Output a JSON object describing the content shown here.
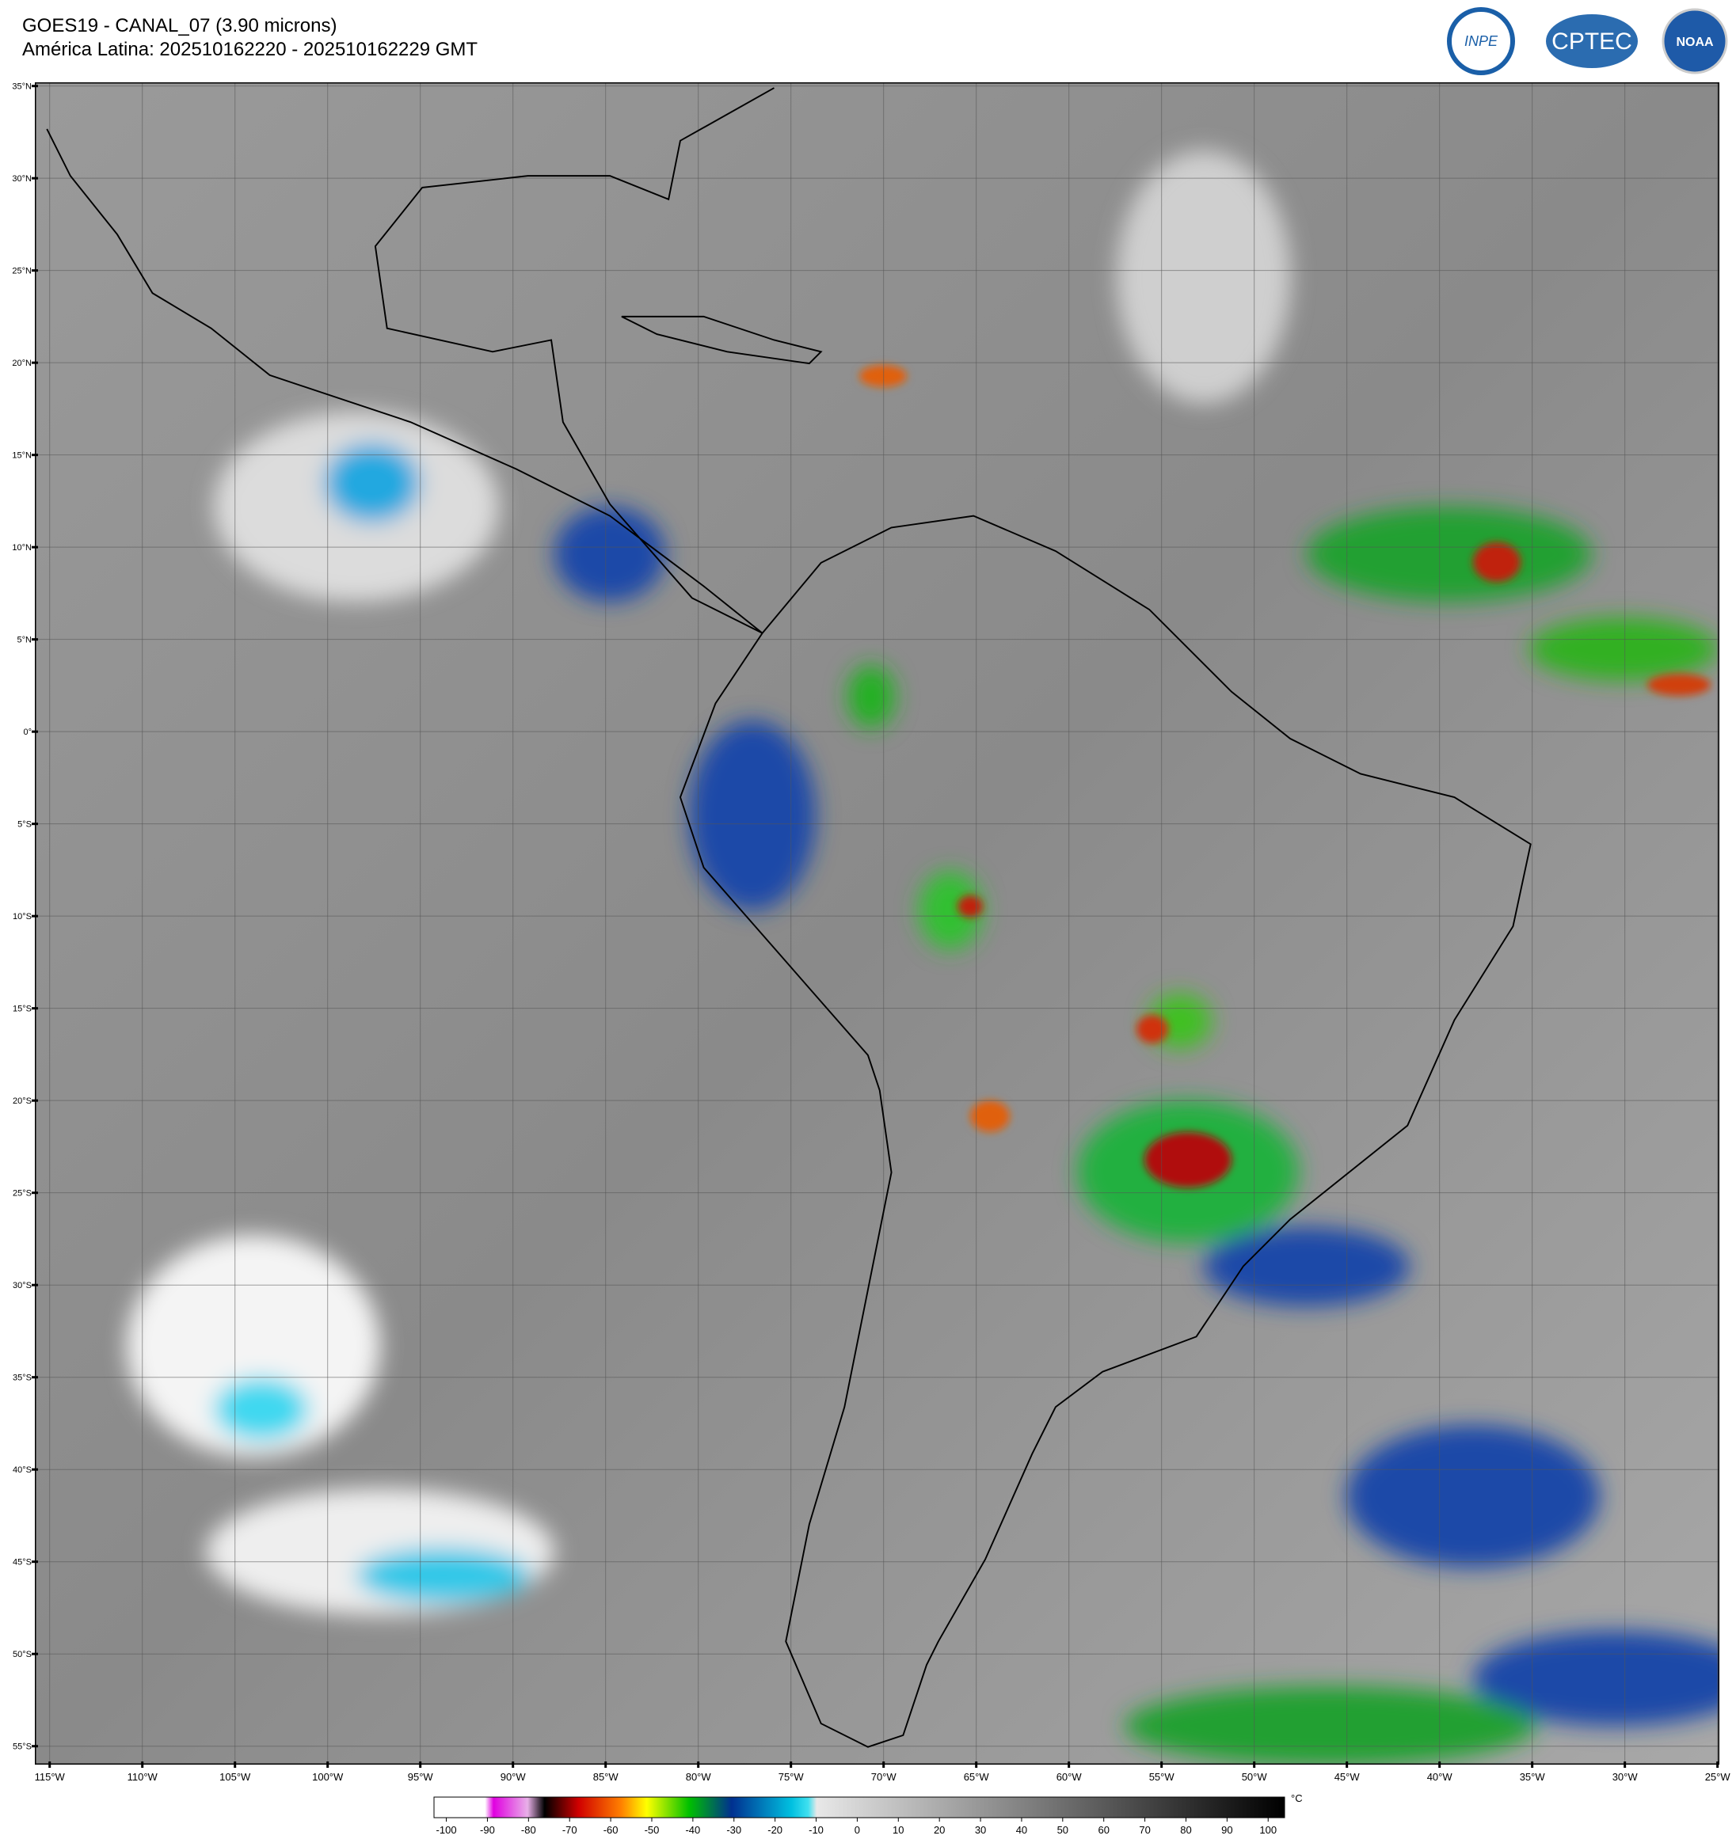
{
  "header": {
    "title": "GOES19 - CANAL_07 (3.90 microns)",
    "subtitle": "América Latina: 202510162220 - 202510162229 GMT"
  },
  "logos": [
    "INPE",
    "CPTEC",
    "NOAA"
  ],
  "map": {
    "lon_range": [
      -115.8,
      -24.9
    ],
    "lat_range": [
      -56,
      35.2
    ],
    "lat_ticks": [
      {
        "value": 35,
        "label": "35°N"
      },
      {
        "value": 30,
        "label": "30°N"
      },
      {
        "value": 25,
        "label": "25°N"
      },
      {
        "value": 20,
        "label": "20°N"
      },
      {
        "value": 15,
        "label": "15°N"
      },
      {
        "value": 10,
        "label": "10°N"
      },
      {
        "value": 5,
        "label": "5°N"
      },
      {
        "value": 0,
        "label": "0°"
      },
      {
        "value": -5,
        "label": "5°S"
      },
      {
        "value": -10,
        "label": "10°S"
      },
      {
        "value": -15,
        "label": "15°S"
      },
      {
        "value": -20,
        "label": "20°S"
      },
      {
        "value": -25,
        "label": "25°S"
      },
      {
        "value": -30,
        "label": "30°S"
      },
      {
        "value": -35,
        "label": "35°S"
      },
      {
        "value": -40,
        "label": "40°S"
      },
      {
        "value": -45,
        "label": "45°S"
      },
      {
        "value": -50,
        "label": "50°S"
      },
      {
        "value": -55,
        "label": "55°S"
      }
    ],
    "lon_ticks": [
      {
        "value": -115,
        "label": "115°W"
      },
      {
        "value": -110,
        "label": "110°W"
      },
      {
        "value": -105,
        "label": "105°W"
      },
      {
        "value": -100,
        "label": "100°W"
      },
      {
        "value": -95,
        "label": "95°W"
      },
      {
        "value": -90,
        "label": "90°W"
      },
      {
        "value": -85,
        "label": "85°W"
      },
      {
        "value": -80,
        "label": "80°W"
      },
      {
        "value": -75,
        "label": "75°W"
      },
      {
        "value": -70,
        "label": "70°W"
      },
      {
        "value": -65,
        "label": "65°W"
      },
      {
        "value": -60,
        "label": "60°W"
      },
      {
        "value": -55,
        "label": "55°W"
      },
      {
        "value": -50,
        "label": "50°W"
      },
      {
        "value": -45,
        "label": "45°W"
      },
      {
        "value": -40,
        "label": "40°W"
      },
      {
        "value": -35,
        "label": "35°W"
      },
      {
        "value": -30,
        "label": "30°W"
      },
      {
        "value": -25,
        "label": "25°W"
      }
    ]
  },
  "colorbar": {
    "range": [
      -103,
      104
    ],
    "ticks": [
      -100,
      -90,
      -80,
      -70,
      -60,
      -50,
      -40,
      -30,
      -20,
      -10,
      0,
      10,
      20,
      30,
      40,
      50,
      60,
      70,
      80,
      90,
      100
    ],
    "unit": "°C"
  }
}
